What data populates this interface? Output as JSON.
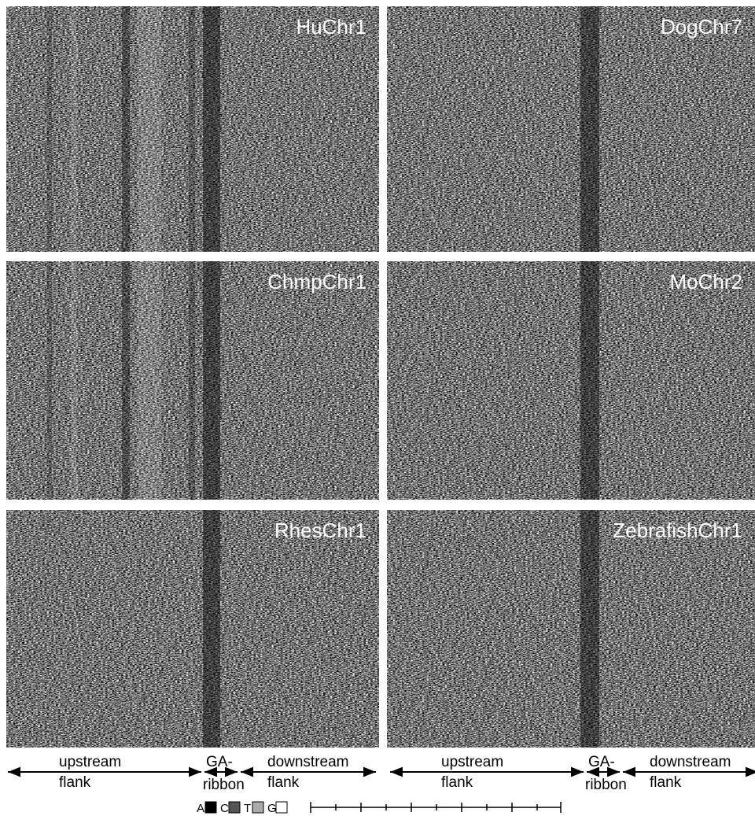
{
  "panels": [
    {
      "label": "HuChr1"
    },
    {
      "label": "DogChr7"
    },
    {
      "label": "ChmpChr1"
    },
    {
      "label": "MoChr2"
    },
    {
      "label": "RhesChr1"
    },
    {
      "label": "ZebrafishChr1"
    }
  ],
  "regions": {
    "upstream": [
      "upstream",
      "flank"
    ],
    "ribbon": [
      "GA-",
      "ribbon"
    ],
    "downstream": [
      "downstream",
      "flank"
    ]
  },
  "legend": [
    {
      "letter": "A",
      "color": "#000000"
    },
    {
      "letter": "C",
      "color": "#555555"
    },
    {
      "letter": "T",
      "color": "#aaaaaa"
    },
    {
      "letter": "G",
      "color": "#ffffff"
    }
  ]
}
